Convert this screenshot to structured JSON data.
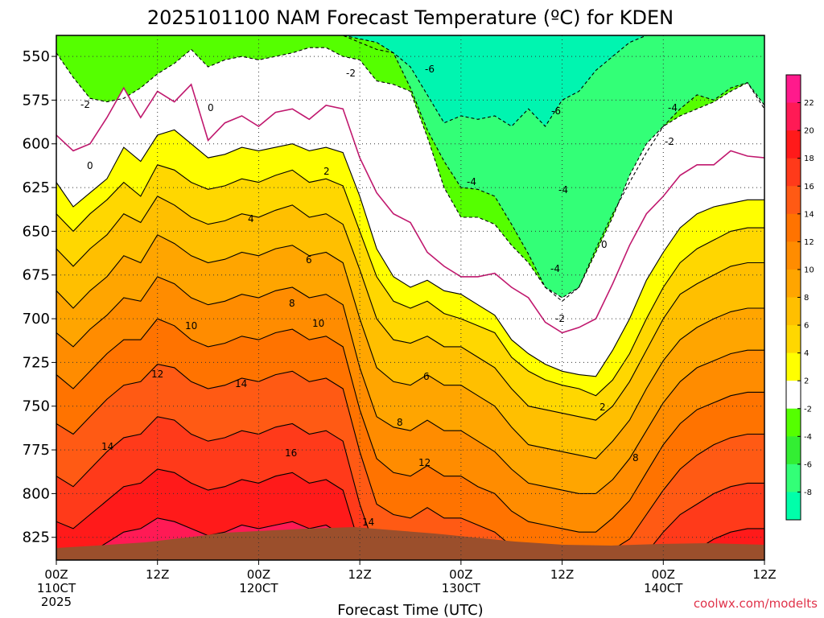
{
  "chart_data": {
    "type": "heatmap",
    "title": "2025101100 NAM Forecast Temperature (ºC) for KDEN",
    "xlabel": "Forecast Time (UTC)",
    "ylabel": "",
    "credit": "coolwx.com/modelts",
    "y_axis": {
      "ticks": [
        "550",
        "575",
        "600",
        "625",
        "650",
        "675",
        "700",
        "725",
        "750",
        "775",
        "800",
        "825"
      ],
      "range_hpa": [
        538,
        838
      ]
    },
    "x_axis": {
      "range_hours": [
        0,
        84
      ],
      "ticks": [
        {
          "hour": 0,
          "lines": [
            "00Z",
            "110CT",
            "2025"
          ]
        },
        {
          "hour": 12,
          "lines": [
            "12Z"
          ]
        },
        {
          "hour": 24,
          "lines": [
            "00Z",
            "120CT"
          ]
        },
        {
          "hour": 36,
          "lines": [
            "12Z"
          ]
        },
        {
          "hour": 48,
          "lines": [
            "00Z",
            "130CT"
          ]
        },
        {
          "hour": 60,
          "lines": [
            "12Z"
          ]
        },
        {
          "hour": 72,
          "lines": [
            "00Z",
            "140CT"
          ]
        },
        {
          "hour": 84,
          "lines": [
            "12Z"
          ]
        }
      ]
    },
    "colorbar": {
      "ticks": [
        "22",
        "20",
        "18",
        "16",
        "14",
        "12",
        "10",
        "8",
        "6",
        "4",
        "2",
        "-2",
        "-4",
        "-6",
        "-8"
      ],
      "bands": [
        {
          "min": 22,
          "max": 24,
          "color": "#ff1a8c"
        },
        {
          "min": 20,
          "max": 22,
          "color": "#ff1a55"
        },
        {
          "min": 18,
          "max": 20,
          "color": "#ff1a1a"
        },
        {
          "min": 16,
          "max": 18,
          "color": "#ff3a1a"
        },
        {
          "min": 14,
          "max": 16,
          "color": "#ff5a14"
        },
        {
          "min": 12,
          "max": 14,
          "color": "#ff7300"
        },
        {
          "min": 10,
          "max": 12,
          "color": "#ff8c00"
        },
        {
          "min": 8,
          "max": 10,
          "color": "#ffa500"
        },
        {
          "min": 6,
          "max": 8,
          "color": "#ffbf00"
        },
        {
          "min": 4,
          "max": 6,
          "color": "#ffd700"
        },
        {
          "min": 2,
          "max": 4,
          "color": "#ffff00"
        },
        {
          "min": -2,
          "max": 2,
          "color": "#ffffff"
        },
        {
          "min": -4,
          "max": -2,
          "color": "#55ff00"
        },
        {
          "min": -6,
          "max": -4,
          "color": "#33ee33"
        },
        {
          "min": -8,
          "max": -6,
          "color": "#33ff77"
        },
        {
          "min": -10,
          "max": -8,
          "color": "#00ffaa"
        }
      ]
    },
    "contour_labels": [
      "-2",
      "-6",
      "-2",
      "0",
      "-6",
      "-4",
      "0",
      "2",
      "-2",
      "-4",
      "-4",
      "-4",
      "4",
      "6",
      "0",
      "8",
      "10",
      "10",
      "-2",
      "12",
      "14",
      "6",
      "8",
      "2",
      "14",
      "16",
      "12",
      "8",
      "14"
    ],
    "isotherms_c": [
      {
        "value": -6,
        "pressure_hpa": [
          538,
          538,
          538,
          538,
          538,
          538,
          538,
          538,
          538,
          538,
          538,
          538,
          538,
          538,
          538,
          538,
          538,
          538,
          542,
          546,
          548,
          556,
          572,
          588,
          584,
          586,
          584,
          590,
          580,
          590,
          575,
          570,
          558,
          550,
          542,
          538,
          538,
          538,
          538,
          538,
          538,
          538,
          538
        ]
      },
      {
        "value": -4,
        "pressure_hpa": [
          538,
          538,
          538,
          538,
          538,
          538,
          538,
          538,
          538,
          538,
          538,
          538,
          538,
          538,
          538,
          538,
          538,
          538,
          540,
          542,
          548,
          568,
          592,
          610,
          625,
          626,
          630,
          646,
          663,
          682,
          690,
          682,
          660,
          640,
          622,
          605,
          590,
          580,
          572,
          575,
          568,
          565,
          580
        ]
      },
      {
        "value": -2,
        "pressure_hpa": [
          548,
          562,
          574,
          576,
          574,
          568,
          560,
          554,
          546,
          556,
          552,
          550,
          552,
          550,
          548,
          545,
          545,
          550,
          552,
          564,
          566,
          570,
          596,
          625,
          642,
          642,
          646,
          658,
          668,
          682,
          688,
          682,
          662,
          642,
          618,
          600,
          590,
          584,
          580,
          576,
          570,
          565,
          578
        ]
      },
      {
        "value": 0,
        "pressure_hpa": [
          595,
          604,
          600,
          585,
          568,
          585,
          570,
          576,
          566,
          598,
          588,
          584,
          590,
          582,
          580,
          586,
          578,
          580,
          608,
          628,
          640,
          645,
          662,
          670,
          676,
          676,
          674,
          682,
          688,
          702,
          708,
          705,
          700,
          680,
          658,
          640,
          630,
          618,
          612,
          612,
          604,
          607,
          608
        ]
      },
      {
        "value": 2,
        "pressure_hpa": [
          622,
          636,
          628,
          620,
          602,
          610,
          595,
          592,
          600,
          608,
          606,
          602,
          604,
          602,
          600,
          604,
          602,
          605,
          630,
          660,
          676,
          682,
          678,
          684,
          686,
          692,
          698,
          712,
          720,
          726,
          730,
          732,
          733,
          718,
          700,
          678,
          662,
          648,
          640,
          636,
          634,
          632,
          632
        ]
      },
      {
        "value": 4,
        "pressure_hpa": [
          640,
          650,
          640,
          632,
          622,
          630,
          612,
          615,
          622,
          626,
          624,
          620,
          622,
          618,
          615,
          622,
          620,
          624,
          650,
          676,
          690,
          694,
          690,
          697,
          700,
          704,
          708,
          722,
          730,
          735,
          738,
          740,
          744,
          735,
          720,
          700,
          682,
          668,
          660,
          655,
          650,
          648,
          648
        ]
      },
      {
        "value": 6,
        "pressure_hpa": [
          660,
          670,
          660,
          652,
          640,
          645,
          630,
          635,
          642,
          646,
          644,
          640,
          642,
          638,
          635,
          642,
          640,
          646,
          672,
          700,
          712,
          714,
          710,
          716,
          716,
          722,
          728,
          740,
          750,
          752,
          754,
          756,
          758,
          750,
          736,
          718,
          700,
          686,
          680,
          675,
          670,
          668,
          668
        ]
      },
      {
        "value": 8,
        "pressure_hpa": [
          684,
          694,
          684,
          676,
          664,
          668,
          652,
          657,
          664,
          668,
          666,
          662,
          664,
          660,
          658,
          664,
          662,
          668,
          700,
          728,
          736,
          738,
          732,
          738,
          738,
          744,
          750,
          762,
          772,
          774,
          776,
          778,
          780,
          770,
          758,
          740,
          724,
          712,
          705,
          700,
          696,
          694,
          694
        ]
      },
      {
        "value": 10,
        "pressure_hpa": [
          708,
          716,
          706,
          698,
          688,
          690,
          676,
          680,
          688,
          692,
          690,
          686,
          688,
          684,
          682,
          688,
          686,
          692,
          728,
          756,
          762,
          764,
          758,
          764,
          764,
          770,
          776,
          786,
          794,
          796,
          798,
          800,
          800,
          792,
          780,
          764,
          748,
          736,
          728,
          724,
          720,
          718,
          718
        ]
      },
      {
        "value": 12,
        "pressure_hpa": [
          732,
          740,
          730,
          720,
          712,
          712,
          700,
          704,
          712,
          716,
          714,
          710,
          712,
          708,
          706,
          712,
          710,
          716,
          752,
          780,
          788,
          790,
          784,
          790,
          790,
          796,
          800,
          810,
          816,
          818,
          820,
          822,
          822,
          814,
          804,
          788,
          772,
          760,
          752,
          748,
          744,
          742,
          742
        ]
      },
      {
        "value": 14,
        "pressure_hpa": [
          760,
          766,
          756,
          746,
          738,
          736,
          726,
          728,
          736,
          740,
          738,
          734,
          736,
          732,
          730,
          736,
          734,
          740,
          776,
          806,
          812,
          814,
          808,
          814,
          814,
          818,
          822,
          830,
          836,
          838,
          838,
          838,
          838,
          832,
          826,
          812,
          798,
          786,
          778,
          772,
          768,
          766,
          766
        ]
      },
      {
        "value": 16,
        "pressure_hpa": [
          790,
          796,
          786,
          776,
          768,
          766,
          756,
          758,
          766,
          770,
          768,
          764,
          766,
          762,
          760,
          766,
          764,
          770,
          806,
          834,
          838,
          838,
          836,
          838,
          838,
          838,
          838,
          838,
          838,
          838,
          838,
          838,
          838,
          838,
          838,
          834,
          822,
          812,
          806,
          800,
          796,
          794,
          794
        ]
      },
      {
        "value": 18,
        "pressure_hpa": [
          816,
          820,
          812,
          804,
          796,
          794,
          786,
          788,
          794,
          798,
          796,
          792,
          794,
          790,
          788,
          794,
          792,
          798,
          830,
          838,
          838,
          838,
          838,
          838,
          838,
          838,
          838,
          838,
          838,
          838,
          838,
          838,
          838,
          838,
          838,
          838,
          838,
          836,
          832,
          826,
          822,
          820,
          820
        ]
      },
      {
        "value": 20,
        "pressure_hpa": [
          838,
          838,
          834,
          828,
          822,
          820,
          814,
          816,
          820,
          824,
          822,
          818,
          820,
          818,
          816,
          820,
          818,
          824,
          838,
          838,
          838,
          838,
          838,
          838,
          838,
          838,
          838,
          838,
          838,
          838,
          838,
          838,
          838,
          838,
          838,
          838,
          838,
          838,
          838,
          838,
          838,
          838,
          838
        ]
      }
    ]
  }
}
